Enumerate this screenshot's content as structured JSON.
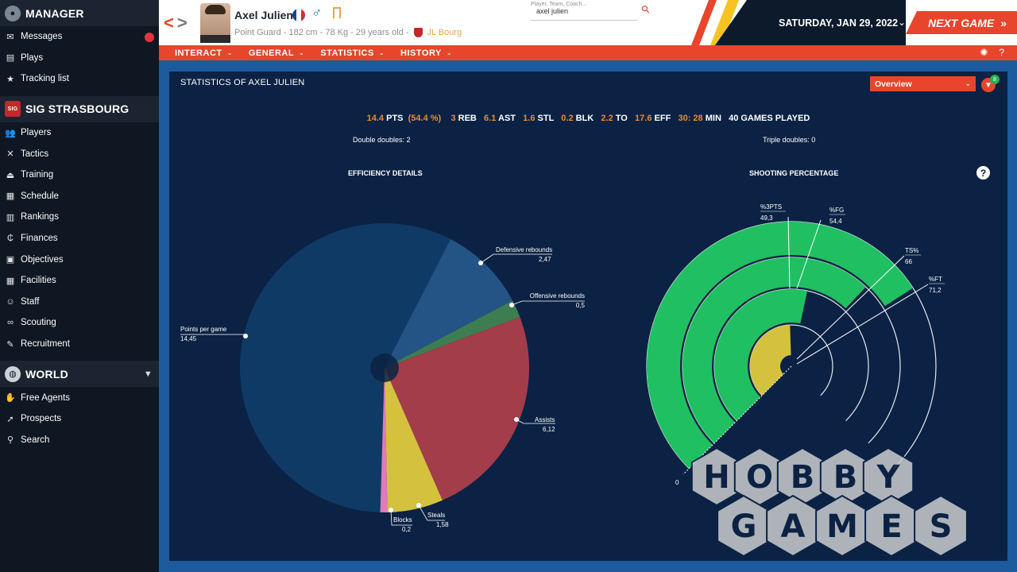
{
  "sidebar": {
    "manager": {
      "title": "MANAGER",
      "items": [
        {
          "label": "Messages",
          "icon": "message-icon",
          "has_badge": true
        },
        {
          "label": "Plays",
          "icon": "clipboard-icon"
        },
        {
          "label": "Tracking list",
          "icon": "star-icon"
        }
      ]
    },
    "club": {
      "title": "SIG STRASBOURG",
      "items": [
        {
          "label": "Players",
          "icon": "users-icon"
        },
        {
          "label": "Tactics",
          "icon": "tactics-icon"
        },
        {
          "label": "Training",
          "icon": "whistle-icon"
        },
        {
          "label": "Schedule",
          "icon": "calendar-icon"
        },
        {
          "label": "Rankings",
          "icon": "podium-icon"
        },
        {
          "label": "Finances",
          "icon": "money-icon"
        },
        {
          "label": "Objectives",
          "icon": "briefcase-icon"
        },
        {
          "label": "Facilities",
          "icon": "building-icon"
        },
        {
          "label": "Staff",
          "icon": "staff-icon"
        },
        {
          "label": "Scouting",
          "icon": "binoculars-icon"
        },
        {
          "label": "Recruitment",
          "icon": "contract-icon"
        }
      ]
    },
    "world": {
      "title": "WORLD",
      "items": [
        {
          "label": "Free Agents",
          "icon": "free-agent-icon"
        },
        {
          "label": "Prospects",
          "icon": "prospects-icon"
        },
        {
          "label": "Search",
          "icon": "search-icon"
        }
      ]
    }
  },
  "header": {
    "player_name": "Axel Julien",
    "player_info": "Point Guard - 182 cm - 78 Kg - 29 years old -",
    "club": "JL Bourg",
    "search_placeholder": "Player, Team, Coach...",
    "search_value": "axel julien",
    "date": "SATURDAY, JAN 29, 2022",
    "next_game": "NEXT GAME",
    "colors": {
      "accent": "#e8452c",
      "flag": [
        "#1f3f9c",
        "#ffffff",
        "#d62a35"
      ]
    }
  },
  "menubar": {
    "items": [
      "INTERACT",
      "GENERAL",
      "STATISTICS",
      "HISTORY"
    ]
  },
  "panel": {
    "title": "STATISTICS OF AXEL JULIEN",
    "view": "Overview",
    "filter_count": "8",
    "stats": [
      {
        "value": "14.4",
        "label": "PTS"
      },
      {
        "value": "(54.4 %)",
        "label": ""
      },
      {
        "value": "3",
        "label": "REB"
      },
      {
        "value": "6.1",
        "label": "AST"
      },
      {
        "value": "1.6",
        "label": "STL"
      },
      {
        "value": "0.2",
        "label": "BLK"
      },
      {
        "value": "2.2",
        "label": "TO"
      },
      {
        "value": "17.6",
        "label": "EFF"
      },
      {
        "value": "30: 28",
        "label": "MIN"
      },
      {
        "value": "",
        "label": "40 GAMES PLAYED"
      }
    ],
    "double_doubles": "Double doubles:  2",
    "triple_doubles": "Triple doubles:  0",
    "efficiency_title": "EFFICIENCY DETAILS",
    "shooting_title": "SHOOTING PERCENTAGE"
  },
  "chart_data": [
    {
      "type": "pie",
      "title": "EFFICIENCY DETAILS",
      "categories": [
        "Points per game",
        "Defensive rebounds",
        "Offensive rebounds",
        "Assists",
        "Steals",
        "Blocks"
      ],
      "values": [
        14.45,
        2.47,
        0.5,
        6.12,
        1.58,
        0.2
      ],
      "value_labels": [
        "14,45",
        "2,47",
        "0,5",
        "6,12",
        "1,58",
        "0,2"
      ],
      "colors": [
        "#103a66",
        "#235485",
        "#3e7d52",
        "#a33d4a",
        "#d4c23f",
        "#e07ab8"
      ]
    },
    {
      "type": "bar",
      "subtype": "radial-bar",
      "title": "SHOOTING PERCENTAGE",
      "categories": [
        "%3PTS",
        "%FG",
        "TS%",
        "%FT"
      ],
      "values": [
        49.3,
        54.4,
        66,
        71.2
      ],
      "value_labels": [
        "49,3",
        "54,4",
        "66",
        "71,2"
      ],
      "zero_label": "0",
      "colors": [
        "#d4c23f",
        "#20c062",
        "#20c062",
        "#20c062"
      ]
    }
  ],
  "watermark": {
    "line1": "HOBBY",
    "line2": "GAMES"
  }
}
